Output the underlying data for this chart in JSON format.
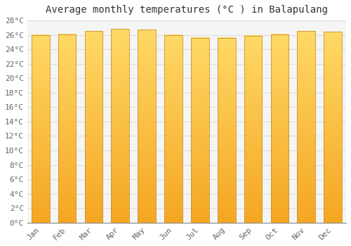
{
  "title": "Average monthly temperatures (°C ) in Balapulang",
  "months": [
    "Jan",
    "Feb",
    "Mar",
    "Apr",
    "May",
    "Jun",
    "Jul",
    "Aug",
    "Sep",
    "Oct",
    "Nov",
    "Dec"
  ],
  "values": [
    26.0,
    26.1,
    26.5,
    26.8,
    26.7,
    26.0,
    25.6,
    25.6,
    25.9,
    26.1,
    26.5,
    26.4
  ],
  "ylim": [
    0,
    28
  ],
  "ytick_step": 2,
  "bar_color_light": "#FFD966",
  "bar_color_dark": "#F5A623",
  "bar_edge_color": "#C8922A",
  "background_color": "#FFFFFF",
  "plot_bg_color": "#F5F5F5",
  "grid_color": "#DDDDDD",
  "title_fontsize": 10,
  "tick_fontsize": 8,
  "font_family": "monospace",
  "bar_width": 0.68
}
